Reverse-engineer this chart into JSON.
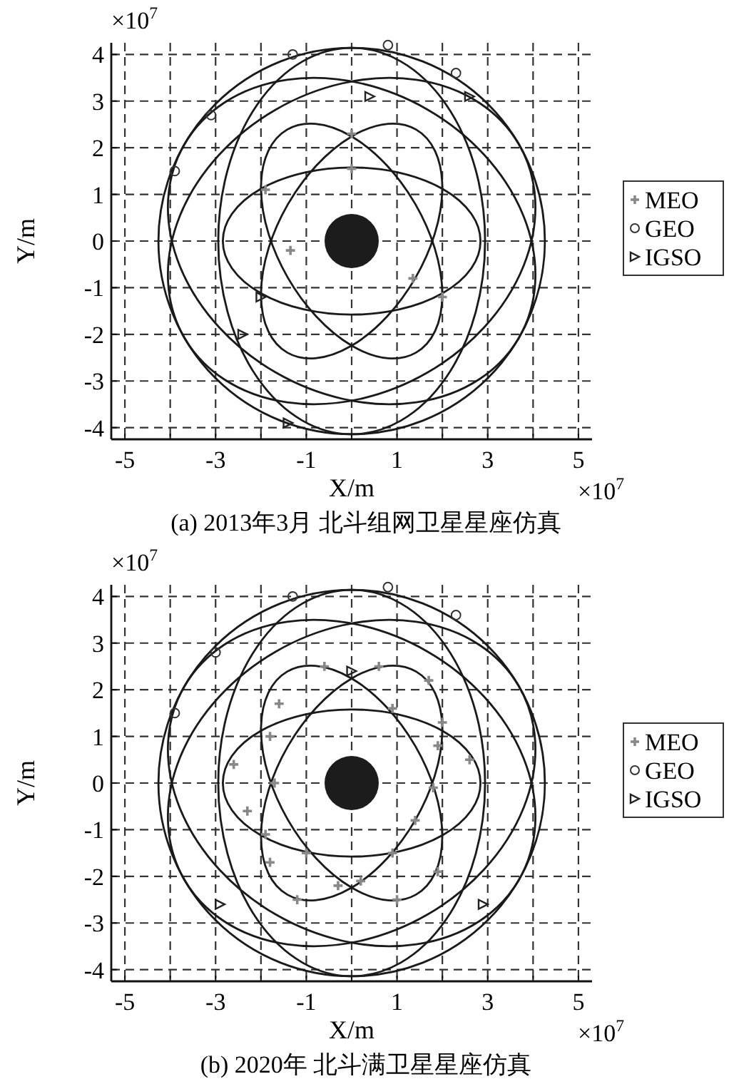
{
  "chart_data": [
    {
      "type": "scatter",
      "title": "(a) 2013年3月 北斗组网卫星星座仿真",
      "xlabel": "X/m",
      "ylabel": "Y/m",
      "xlim": [
        -5.3,
        5.3
      ],
      "ylim": [
        -4.25,
        4.25
      ],
      "xticks": [
        -5,
        {
          "value": -4,
          "label": null
        },
        -3,
        {
          "value": -2,
          "label": null
        },
        -1,
        {
          "value": 0,
          "label": null
        },
        1,
        {
          "value": 2,
          "label": null
        },
        3,
        {
          "value": 4,
          "label": null
        },
        5
      ],
      "yticks": [
        -4,
        -3,
        -2,
        -1,
        0,
        1,
        2,
        3,
        4
      ],
      "grid": true,
      "legend": "right",
      "annotations": [
        "×10$^{7}$",
        "×10$^{7}$"
      ],
      "series": [
        {
          "type": "scatter",
          "name": "MEO",
          "color": "#888888",
          "marker": "cross",
          "x": [
            0,
            0,
            1.35,
            -1.35,
            -1.9,
            2.0
          ],
          "values": [
            2.3,
            1.55,
            -0.8,
            -0.2,
            1.1,
            -1.2
          ]
        },
        {
          "type": "scatter",
          "name": "GEO",
          "color": "#333333",
          "marker": "circle",
          "x": [
            -3.9,
            -3.1,
            -1.3,
            0.8,
            2.3
          ],
          "values": [
            1.5,
            2.7,
            4.0,
            4.2,
            3.6
          ]
        },
        {
          "type": "scatter",
          "name": "IGSO",
          "color": "#222222",
          "marker": "triangle",
          "x": [
            0.4,
            2.6,
            -2.4,
            -1.4,
            -2.0
          ],
          "values": [
            3.1,
            3.1,
            -2.0,
            -3.9,
            -1.2
          ]
        }
      ]
    },
    {
      "type": "scatter",
      "title": "(b) 2020年 北斗满卫星星座仿真",
      "xlabel": "X/m",
      "ylabel": "Y/m",
      "xlim": [
        -5.3,
        5.3
      ],
      "ylim": [
        -4.25,
        4.25
      ],
      "xticks": [
        -5,
        {
          "value": -4,
          "label": null
        },
        -3,
        {
          "value": -2,
          "label": null
        },
        -1,
        {
          "value": 0,
          "label": null
        },
        1,
        {
          "value": 2,
          "label": null
        },
        3,
        {
          "value": 4,
          "label": null
        },
        5
      ],
      "yticks": [
        -4,
        -3,
        -2,
        -1,
        0,
        1,
        2,
        3,
        4
      ],
      "grid": true,
      "legend": "right",
      "annotations": [
        "×10$^{7}$",
        "×10$^{7}$"
      ],
      "series": [
        {
          "type": "scatter",
          "name": "MEO",
          "color": "#888888",
          "marker": "cross",
          "x": [
            -0.6,
            0.6,
            1.7,
            -1.6,
            -1.8,
            0.9,
            -2.6,
            -1.7,
            2.0,
            1.9,
            1.8,
            1.4,
            0.9,
            -1.0,
            -2.3,
            -1.9,
            -1.8,
            -0.3,
            0.2,
            1.0,
            -1.2,
            1.9,
            2.6
          ],
          "values": [
            2.5,
            2.5,
            2.2,
            1.7,
            1.0,
            1.6,
            0.4,
            0,
            1.3,
            0.8,
            -0.1,
            -0.8,
            -1.5,
            -1.5,
            -0.6,
            -1.1,
            -1.7,
            -2.2,
            -2.1,
            -2.5,
            -2.5,
            -1.9,
            0.5
          ]
        },
        {
          "type": "scatter",
          "name": "GEO",
          "color": "#333333",
          "marker": "circle",
          "x": [
            -3.9,
            -3.0,
            -1.3,
            0.8,
            2.3
          ],
          "values": [
            1.5,
            2.8,
            4.0,
            4.2,
            3.6
          ]
        },
        {
          "type": "scatter",
          "name": "IGSO",
          "color": "#222222",
          "marker": "triangle",
          "x": [
            -2.9,
            2.9,
            0
          ],
          "values": [
            -2.6,
            -2.6,
            2.4
          ]
        }
      ]
    }
  ]
}
